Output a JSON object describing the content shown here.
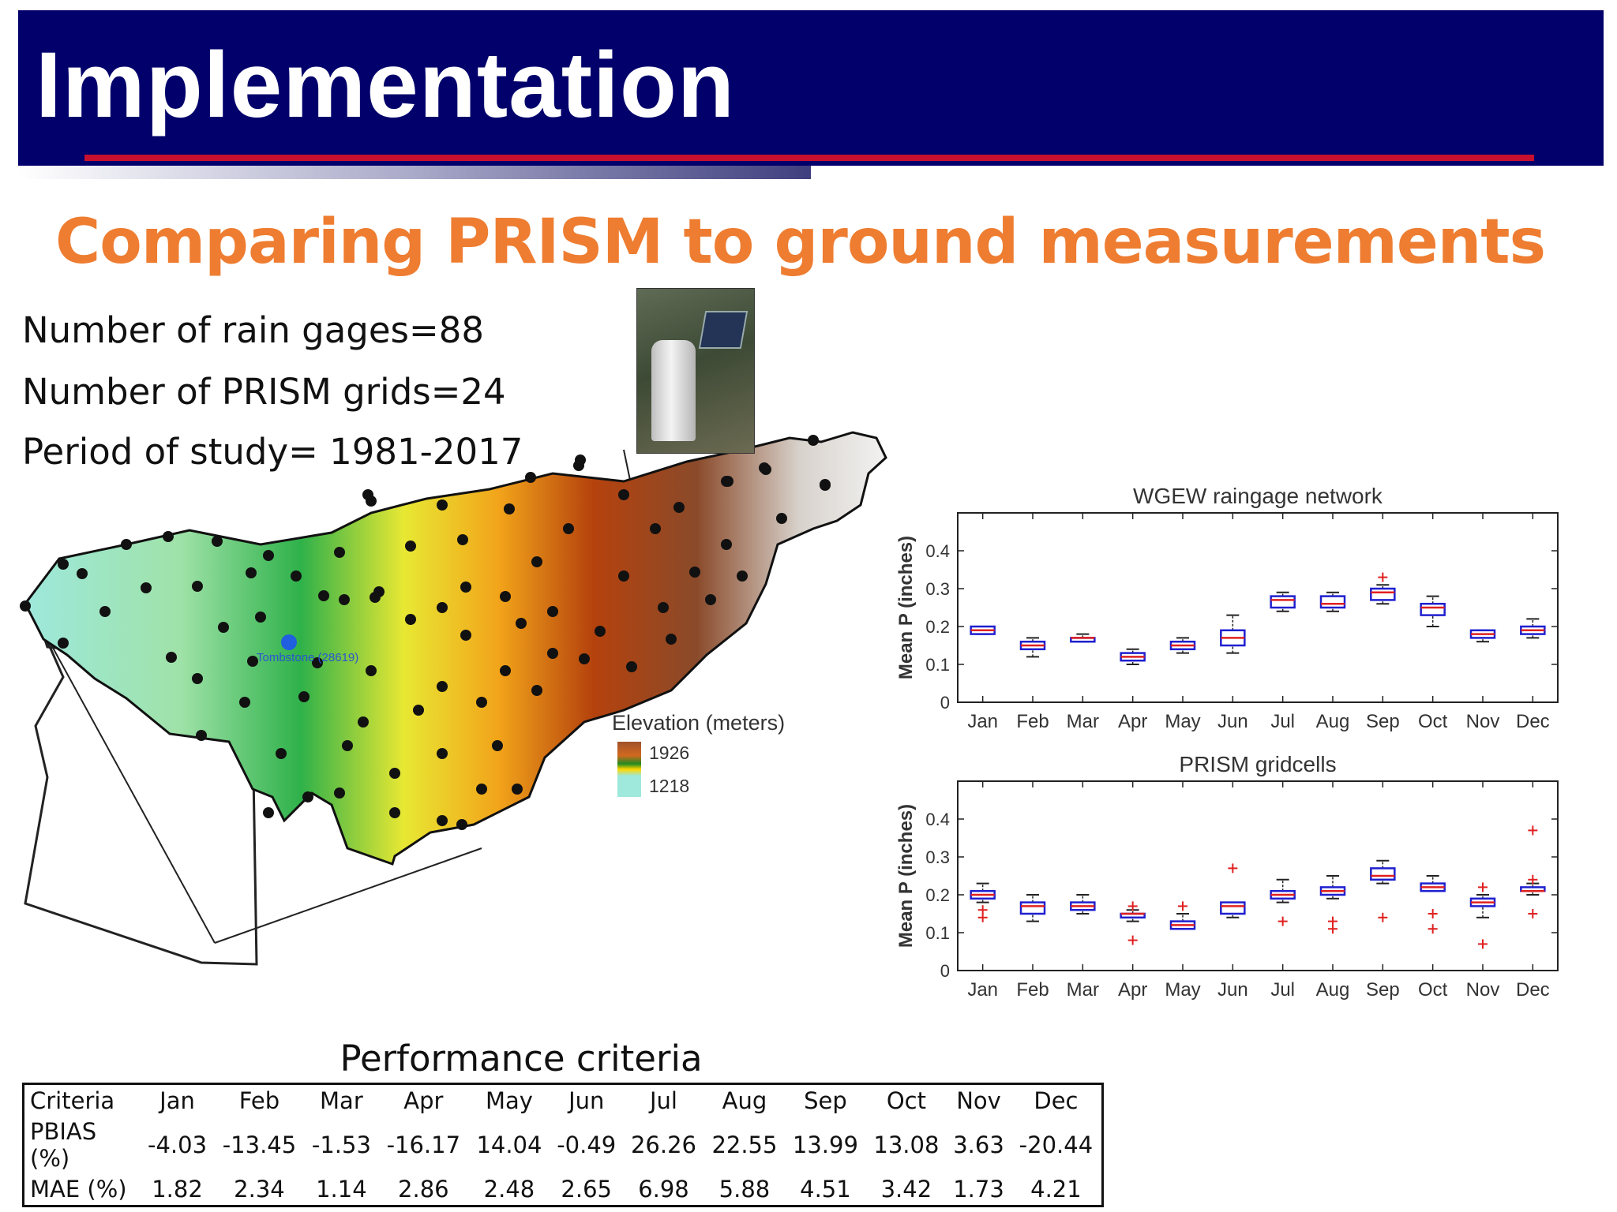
{
  "header": {
    "title": "Implementation"
  },
  "subtitle": "Comparing PRISM to ground measurements",
  "stats": {
    "rain_gages": "Number of rain gages=88",
    "prism_grids": "Number of PRISM grids=24",
    "period": "Period of study= 1981-2017"
  },
  "map": {
    "station_label": "Tombstone (28619)",
    "legend_title": "Elevation (meters)",
    "legend_max": "1926",
    "legend_min": "1218"
  },
  "chart_data": [
    {
      "type": "box",
      "title": "WGEW raingage network",
      "ylabel": "Mean P (inches)",
      "ylim": [
        0,
        0.5
      ],
      "yticks": [
        "0",
        "0.1",
        "0.2",
        "0.3",
        "0.4"
      ],
      "categories": [
        "Jan",
        "Feb",
        "Mar",
        "Apr",
        "May",
        "Jun",
        "Jul",
        "Aug",
        "Sep",
        "Oct",
        "Nov",
        "Dec"
      ],
      "boxes": [
        {
          "whisker_low": 0.18,
          "q1": 0.18,
          "median": 0.19,
          "q3": 0.2,
          "whisker_high": 0.2,
          "outliers": []
        },
        {
          "whisker_low": 0.12,
          "q1": 0.14,
          "median": 0.15,
          "q3": 0.16,
          "whisker_high": 0.17,
          "outliers": []
        },
        {
          "whisker_low": 0.16,
          "q1": 0.16,
          "median": 0.17,
          "q3": 0.17,
          "whisker_high": 0.18,
          "outliers": []
        },
        {
          "whisker_low": 0.1,
          "q1": 0.11,
          "median": 0.12,
          "q3": 0.13,
          "whisker_high": 0.14,
          "outliers": []
        },
        {
          "whisker_low": 0.13,
          "q1": 0.14,
          "median": 0.15,
          "q3": 0.16,
          "whisker_high": 0.17,
          "outliers": []
        },
        {
          "whisker_low": 0.13,
          "q1": 0.15,
          "median": 0.17,
          "q3": 0.19,
          "whisker_high": 0.23,
          "outliers": []
        },
        {
          "whisker_low": 0.24,
          "q1": 0.25,
          "median": 0.27,
          "q3": 0.28,
          "whisker_high": 0.29,
          "outliers": []
        },
        {
          "whisker_low": 0.24,
          "q1": 0.25,
          "median": 0.26,
          "q3": 0.28,
          "whisker_high": 0.29,
          "outliers": []
        },
        {
          "whisker_low": 0.26,
          "q1": 0.27,
          "median": 0.29,
          "q3": 0.3,
          "whisker_high": 0.31,
          "outliers": [
            0.33
          ]
        },
        {
          "whisker_low": 0.2,
          "q1": 0.23,
          "median": 0.25,
          "q3": 0.26,
          "whisker_high": 0.28,
          "outliers": []
        },
        {
          "whisker_low": 0.16,
          "q1": 0.17,
          "median": 0.18,
          "q3": 0.19,
          "whisker_high": 0.19,
          "outliers": []
        },
        {
          "whisker_low": 0.17,
          "q1": 0.18,
          "median": 0.19,
          "q3": 0.2,
          "whisker_high": 0.22,
          "outliers": []
        }
      ]
    },
    {
      "type": "box",
      "title": "PRISM gridcells",
      "ylabel": "Mean P (inches)",
      "ylim": [
        0,
        0.5
      ],
      "yticks": [
        "0",
        "0.1",
        "0.2",
        "0.3",
        "0.4"
      ],
      "categories": [
        "Jan",
        "Feb",
        "Mar",
        "Apr",
        "May",
        "Jun",
        "Jul",
        "Aug",
        "Sep",
        "Oct",
        "Nov",
        "Dec"
      ],
      "boxes": [
        {
          "whisker_low": 0.18,
          "q1": 0.19,
          "median": 0.2,
          "q3": 0.21,
          "whisker_high": 0.23,
          "outliers": [
            0.16,
            0.14
          ]
        },
        {
          "whisker_low": 0.13,
          "q1": 0.15,
          "median": 0.17,
          "q3": 0.18,
          "whisker_high": 0.2,
          "outliers": []
        },
        {
          "whisker_low": 0.15,
          "q1": 0.16,
          "median": 0.17,
          "q3": 0.18,
          "whisker_high": 0.2,
          "outliers": []
        },
        {
          "whisker_low": 0.13,
          "q1": 0.14,
          "median": 0.15,
          "q3": 0.15,
          "whisker_high": 0.16,
          "outliers": [
            0.17,
            0.08
          ]
        },
        {
          "whisker_low": 0.11,
          "q1": 0.11,
          "median": 0.12,
          "q3": 0.13,
          "whisker_high": 0.15,
          "outliers": [
            0.17
          ]
        },
        {
          "whisker_low": 0.14,
          "q1": 0.15,
          "median": 0.17,
          "q3": 0.18,
          "whisker_high": 0.18,
          "outliers": [
            0.27
          ]
        },
        {
          "whisker_low": 0.18,
          "q1": 0.19,
          "median": 0.2,
          "q3": 0.21,
          "whisker_high": 0.24,
          "outliers": [
            0.13
          ]
        },
        {
          "whisker_low": 0.19,
          "q1": 0.2,
          "median": 0.21,
          "q3": 0.22,
          "whisker_high": 0.25,
          "outliers": [
            0.13,
            0.11
          ]
        },
        {
          "whisker_low": 0.23,
          "q1": 0.24,
          "median": 0.25,
          "q3": 0.27,
          "whisker_high": 0.29,
          "outliers": [
            0.14
          ]
        },
        {
          "whisker_low": 0.21,
          "q1": 0.21,
          "median": 0.22,
          "q3": 0.23,
          "whisker_high": 0.25,
          "outliers": [
            0.15,
            0.11
          ]
        },
        {
          "whisker_low": 0.14,
          "q1": 0.17,
          "median": 0.18,
          "q3": 0.19,
          "whisker_high": 0.2,
          "outliers": [
            0.22,
            0.07
          ]
        },
        {
          "whisker_low": 0.2,
          "q1": 0.21,
          "median": 0.21,
          "q3": 0.22,
          "whisker_high": 0.23,
          "outliers": [
            0.37,
            0.24,
            0.15
          ]
        }
      ]
    }
  ],
  "performance": {
    "title": "Performance criteria",
    "headers": [
      "Criteria",
      "Jan",
      "Feb",
      "Mar",
      "Apr",
      "May",
      "Jun",
      "Jul",
      "Aug",
      "Sep",
      "Oct",
      "Nov",
      "Dec"
    ],
    "rows": [
      [
        "PBIAS (%)",
        "-4.03",
        "-13.45",
        "-1.53",
        "-16.17",
        "14.04",
        "-0.49",
        "26.26",
        "22.55",
        "13.99",
        "13.08",
        "3.63",
        "-20.44"
      ],
      [
        "MAE (%)",
        "1.82",
        "2.34",
        "1.14",
        "2.86",
        "2.48",
        "2.65",
        "6.98",
        "5.88",
        "4.51",
        "3.42",
        "1.73",
        "4.21"
      ]
    ]
  },
  "colors": {
    "title_bar": "#02006b",
    "subtitle": "#ee7d31",
    "accent_rule": "#c8102e",
    "box_edge": "#1f1fcf",
    "median": "#e02020",
    "outlier": "#e02020"
  }
}
